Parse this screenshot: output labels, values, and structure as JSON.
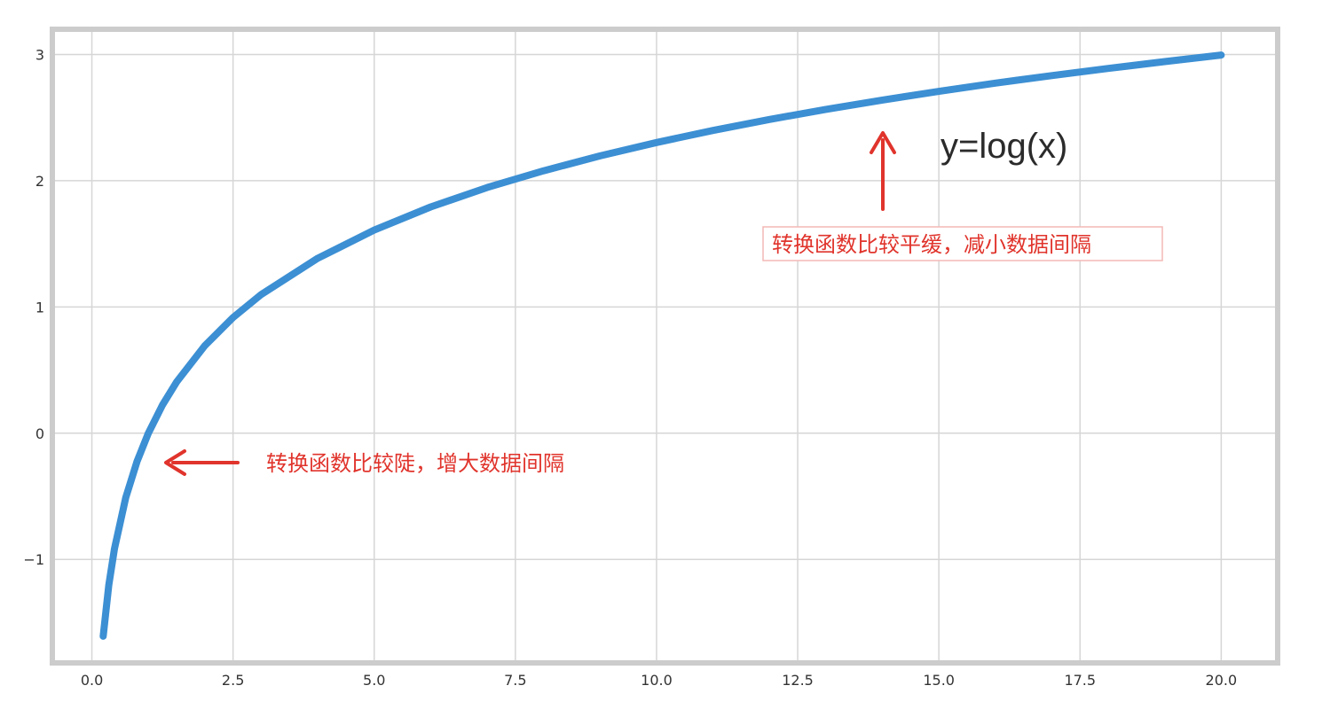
{
  "chart_data": {
    "type": "line",
    "function": "log(x)",
    "x_range": [
      0.2,
      20.0
    ],
    "xlim": [
      -0.7,
      21.0
    ],
    "ylim": [
      -1.82,
      3.2
    ],
    "grid": true,
    "x_ticks": [
      0.0,
      2.5,
      5.0,
      7.5,
      10.0,
      12.5,
      15.0,
      17.5,
      20.0
    ],
    "x_tick_labels": [
      "0.0",
      "2.5",
      "5.0",
      "7.5",
      "10.0",
      "12.5",
      "15.0",
      "17.5",
      "20.0"
    ],
    "y_ticks": [
      3,
      2,
      1,
      0,
      -1
    ],
    "y_tick_labels": [
      "3",
      "2",
      "1",
      "0",
      "−1"
    ],
    "series": [
      {
        "values": [
          [
            0.2,
            -1.609
          ],
          [
            0.3,
            -1.204
          ],
          [
            0.4,
            -0.916
          ],
          [
            0.6,
            -0.511
          ],
          [
            0.8,
            -0.223
          ],
          [
            1.0,
            0.0
          ],
          [
            1.25,
            0.223
          ],
          [
            1.5,
            0.405
          ],
          [
            2.0,
            0.693
          ],
          [
            2.5,
            0.916
          ],
          [
            3.0,
            1.099
          ],
          [
            4.0,
            1.386
          ],
          [
            5.0,
            1.609
          ],
          [
            6.0,
            1.792
          ],
          [
            7.0,
            1.946
          ],
          [
            8.0,
            2.079
          ],
          [
            9.0,
            2.197
          ],
          [
            10.0,
            2.303
          ],
          [
            11.0,
            2.398
          ],
          [
            12.0,
            2.485
          ],
          [
            13.0,
            2.565
          ],
          [
            14.0,
            2.639
          ],
          [
            15.0,
            2.708
          ],
          [
            16.0,
            2.773
          ],
          [
            17.0,
            2.833
          ],
          [
            18.0,
            2.89
          ],
          [
            19.0,
            2.944
          ],
          [
            20.0,
            2.996
          ]
        ]
      }
    ],
    "annotations": {
      "formula": "y=log(x)",
      "steep_note": "转换函数比较陡，增大数据间隔",
      "flat_note": "转换函数比较平缓，减小数据间隔"
    }
  },
  "colors": {
    "line": "#3c8fd3",
    "grid": "#d6d6d6",
    "frame": "#cccccc",
    "annotation": "#e0342c",
    "text": "#333333"
  }
}
